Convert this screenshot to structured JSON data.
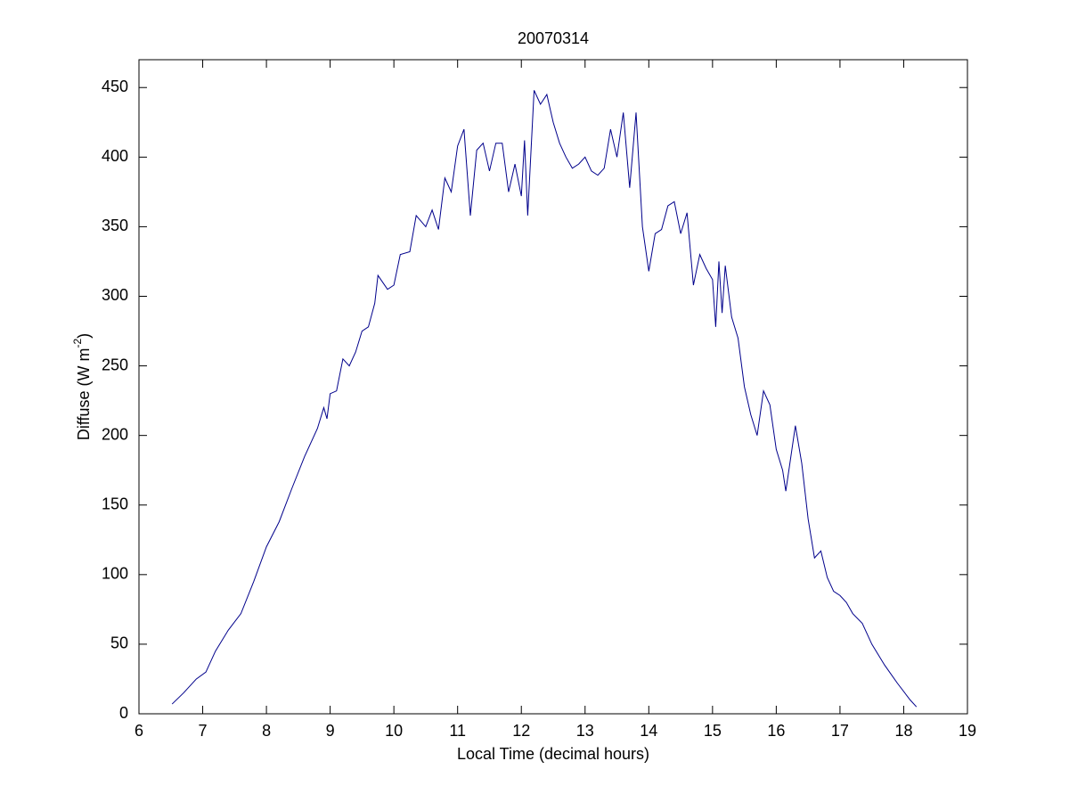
{
  "chart_data": {
    "type": "line",
    "title": "20070314",
    "x_label": "Local Time (decimal hours)",
    "y_label": {
      "text": "Diffuse (W m",
      "superscript": "-2",
      "end": ")"
    },
    "xlim": [
      6,
      19
    ],
    "xticks": [
      6,
      7,
      8,
      9,
      10,
      11,
      12,
      13,
      14,
      15,
      16,
      17,
      18,
      19
    ],
    "ylim": [
      0,
      470
    ],
    "yticks": [
      0,
      50,
      100,
      150,
      200,
      250,
      300,
      350,
      400,
      450
    ],
    "grid": false,
    "series": [
      {
        "name": "Diffuse",
        "color": "#00008b",
        "x": [
          6.52,
          6.7,
          6.9,
          7.05,
          7.2,
          7.4,
          7.6,
          7.8,
          8.0,
          8.2,
          8.4,
          8.6,
          8.8,
          8.9,
          8.95,
          9.0,
          9.1,
          9.2,
          9.3,
          9.4,
          9.5,
          9.6,
          9.7,
          9.75,
          9.9,
          10.0,
          10.1,
          10.25,
          10.35,
          10.5,
          10.6,
          10.7,
          10.8,
          10.9,
          11.0,
          11.1,
          11.2,
          11.3,
          11.4,
          11.5,
          11.6,
          11.7,
          11.8,
          11.9,
          12.0,
          12.05,
          12.1,
          12.2,
          12.3,
          12.4,
          12.5,
          12.6,
          12.7,
          12.8,
          12.9,
          13.0,
          13.1,
          13.2,
          13.3,
          13.4,
          13.5,
          13.6,
          13.7,
          13.8,
          13.9,
          14.0,
          14.1,
          14.2,
          14.3,
          14.4,
          14.5,
          14.6,
          14.7,
          14.8,
          14.9,
          15.0,
          15.05,
          15.1,
          15.15,
          15.2,
          15.3,
          15.4,
          15.5,
          15.6,
          15.7,
          15.8,
          15.9,
          16.0,
          16.1,
          16.15,
          16.3,
          16.4,
          16.5,
          16.6,
          16.7,
          16.8,
          16.9,
          17.0,
          17.1,
          17.2,
          17.35,
          17.5,
          17.7,
          17.9,
          18.1,
          18.2
        ],
        "values": [
          7,
          15,
          25,
          30,
          45,
          60,
          72,
          95,
          120,
          138,
          162,
          185,
          205,
          220,
          212,
          230,
          232,
          255,
          250,
          260,
          275,
          278,
          295,
          315,
          305,
          308,
          330,
          332,
          358,
          350,
          362,
          348,
          385,
          375,
          408,
          420,
          358,
          405,
          410,
          390,
          410,
          410,
          375,
          395,
          372,
          412,
          358,
          448,
          438,
          445,
          425,
          410,
          400,
          392,
          395,
          400,
          390,
          387,
          392,
          420,
          400,
          432,
          378,
          432,
          350,
          318,
          345,
          348,
          365,
          368,
          345,
          360,
          308,
          330,
          320,
          312,
          278,
          325,
          288,
          322,
          285,
          270,
          235,
          215,
          200,
          232,
          222,
          190,
          175,
          160,
          207,
          180,
          140,
          112,
          117,
          98,
          88,
          85,
          80,
          72,
          65,
          50,
          35,
          22,
          10,
          5
        ]
      }
    ]
  }
}
